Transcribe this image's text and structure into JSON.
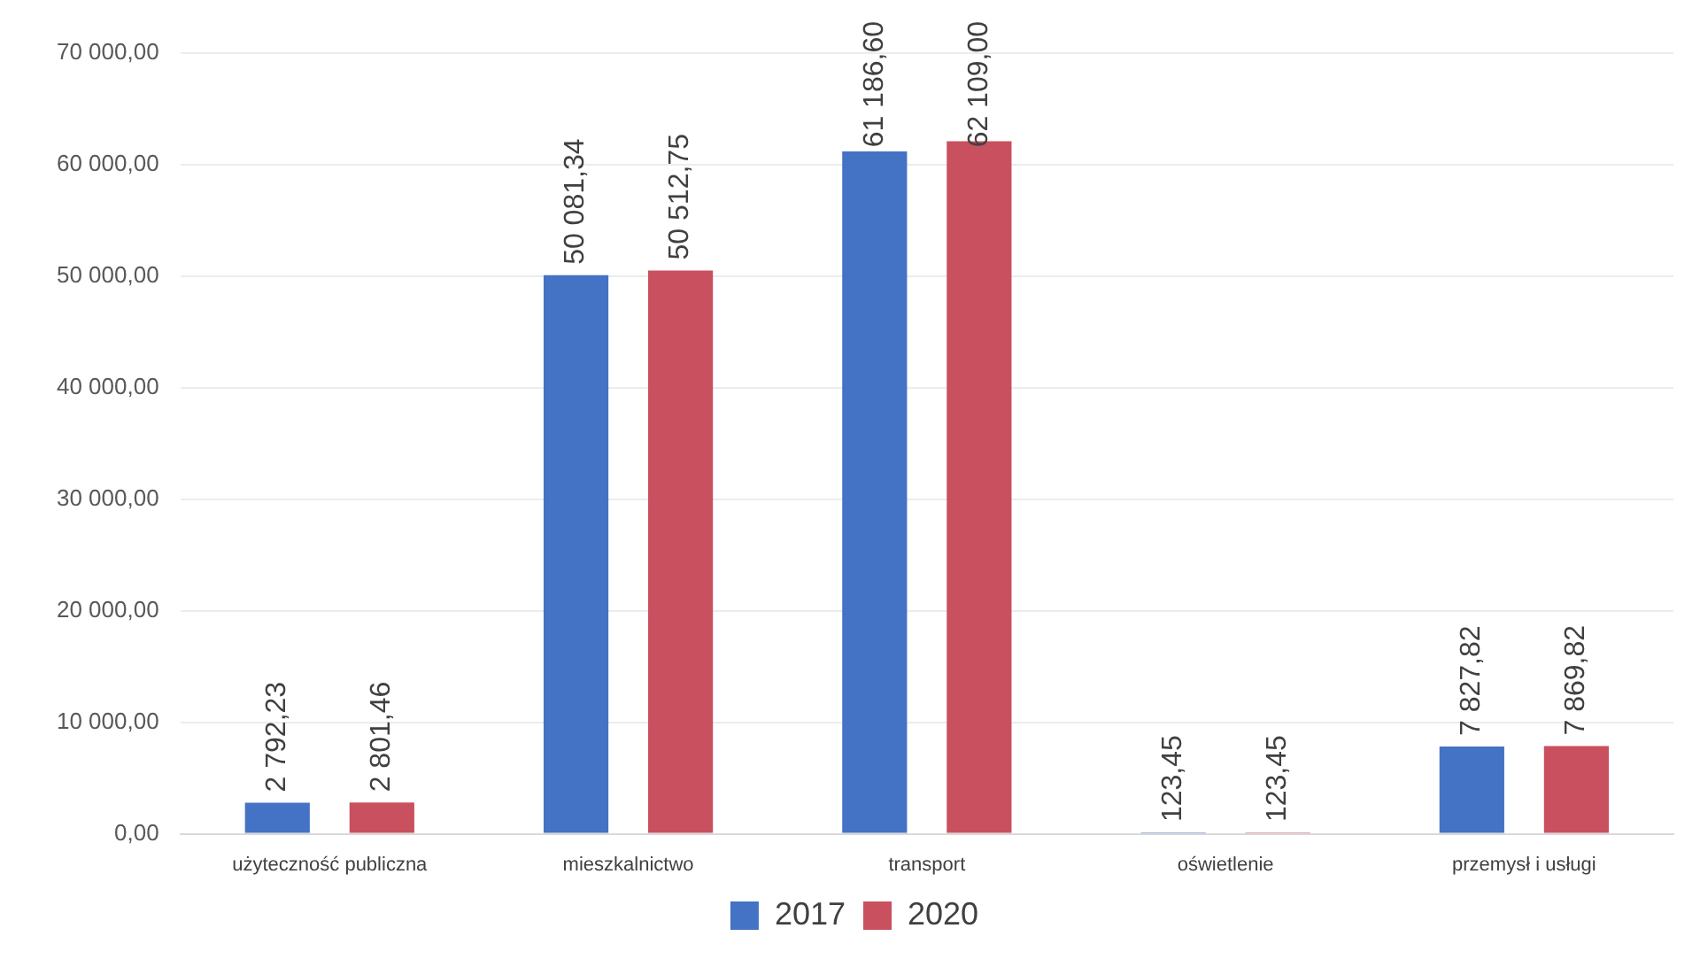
{
  "chart_data": {
    "type": "bar",
    "categories": [
      "użyteczność publiczna",
      "mieszkalnictwo",
      "transport",
      "oświetlenie",
      "przemysł i usługi"
    ],
    "series": [
      {
        "name": "2017",
        "color": "#4472c4",
        "values": [
          2792.23,
          50081.34,
          61186.6,
          123.45,
          7827.82
        ],
        "value_labels": [
          "2 792,23",
          "50 081,34",
          "61 186,60",
          "123,45",
          "7 827,82"
        ]
      },
      {
        "name": "2020",
        "color": "#c9505f",
        "values": [
          2801.46,
          50512.75,
          62109.0,
          123.45,
          7869.82
        ],
        "value_labels": [
          "2 801,46",
          "50 512,75",
          "62 109,00",
          "123,45",
          "7 869,82"
        ]
      }
    ],
    "ylim": [
      0,
      70000
    ],
    "yticks": [
      {
        "value": 0,
        "label": "0,00"
      },
      {
        "value": 10000,
        "label": "10 000,00"
      },
      {
        "value": 20000,
        "label": "20 000,00"
      },
      {
        "value": 30000,
        "label": "30 000,00"
      },
      {
        "value": 40000,
        "label": "40 000,00"
      },
      {
        "value": 50000,
        "label": "50 000,00"
      },
      {
        "value": 60000,
        "label": "60 000,00"
      },
      {
        "value": 70000,
        "label": "70 000,00"
      }
    ],
    "grid": "y",
    "legend": "bottom"
  }
}
